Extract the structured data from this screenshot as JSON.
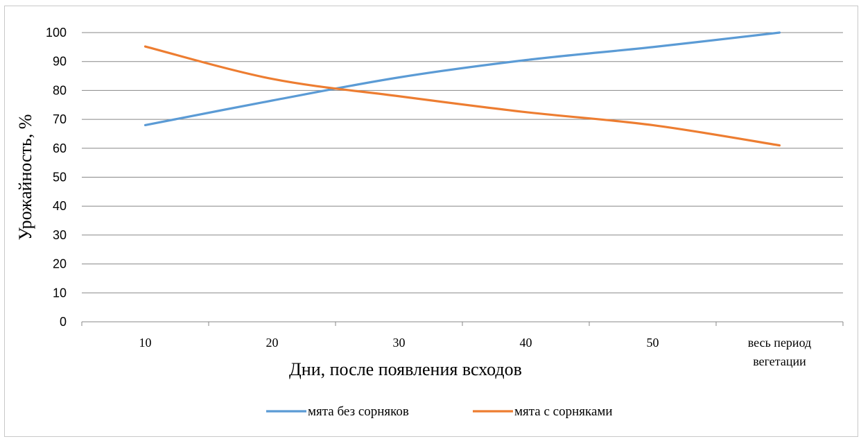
{
  "chart_data": {
    "type": "line",
    "categories": [
      "10",
      "20",
      "30",
      "40",
      "50",
      [
        "весь период",
        "вегетации"
      ]
    ],
    "series": [
      {
        "name": "мята без сорняков",
        "color": "#5b9bd5",
        "values": [
          68,
          76.5,
          84.5,
          90.5,
          95,
          100
        ]
      },
      {
        "name": "мята с сорняками",
        "color": "#ed7d31",
        "values": [
          95.2,
          84,
          78,
          72.5,
          68,
          61
        ]
      }
    ],
    "xlabel": "Дни, после появления всходов",
    "ylabel": "Урожайность, %",
    "ylim": [
      0,
      100
    ],
    "yticks": [
      0,
      10,
      20,
      30,
      40,
      50,
      60,
      70,
      80,
      90,
      100
    ],
    "grid": true,
    "legend": "bottom",
    "smooth": true
  }
}
